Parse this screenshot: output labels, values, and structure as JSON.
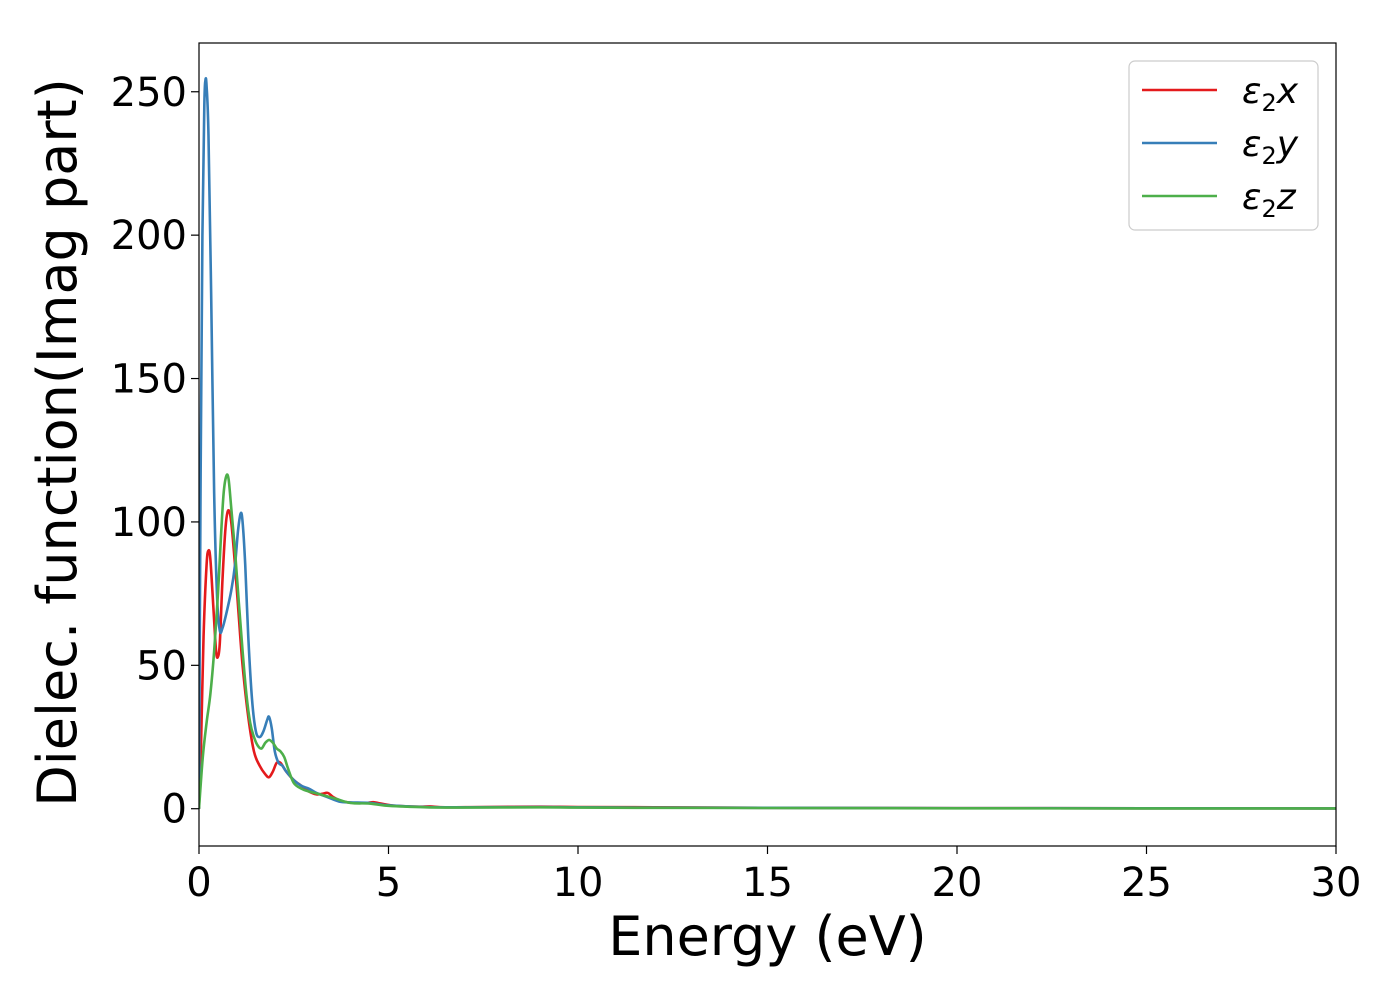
{
  "chart_data": {
    "type": "line",
    "xlabel": "Energy (eV)",
    "ylabel": "Dielec. function(Imag part)",
    "xlim": [
      0,
      30
    ],
    "ylim": [
      -13,
      267
    ],
    "xticks": [
      0,
      5,
      10,
      15,
      20,
      25,
      30
    ],
    "yticks": [
      0,
      50,
      100,
      150,
      200,
      250
    ],
    "grid": false,
    "legend_position": "top-right",
    "series": [
      {
        "name": "ε2x",
        "symbol": "ε",
        "sub": "2",
        "suffix": "x",
        "color": "#e41a1c",
        "points": [
          [
            0,
            0
          ],
          [
            0.05,
            20
          ],
          [
            0.12,
            60
          ],
          [
            0.2,
            85
          ],
          [
            0.25,
            90
          ],
          [
            0.3,
            87
          ],
          [
            0.38,
            70
          ],
          [
            0.45,
            55
          ],
          [
            0.5,
            53
          ],
          [
            0.55,
            58
          ],
          [
            0.62,
            80
          ],
          [
            0.7,
            98
          ],
          [
            0.77,
            104
          ],
          [
            0.85,
            100
          ],
          [
            0.95,
            85
          ],
          [
            1.05,
            67
          ],
          [
            1.15,
            50
          ],
          [
            1.3,
            32
          ],
          [
            1.45,
            20
          ],
          [
            1.6,
            15
          ],
          [
            1.75,
            12
          ],
          [
            1.85,
            11
          ],
          [
            1.95,
            13
          ],
          [
            2.05,
            16
          ],
          [
            2.15,
            16
          ],
          [
            2.3,
            13
          ],
          [
            2.5,
            10
          ],
          [
            2.7,
            8
          ],
          [
            2.9,
            6
          ],
          [
            3.1,
            5
          ],
          [
            3.25,
            5.2
          ],
          [
            3.4,
            5.5
          ],
          [
            3.55,
            4
          ],
          [
            3.8,
            2.5
          ],
          [
            4.1,
            2
          ],
          [
            4.4,
            2
          ],
          [
            4.6,
            2.3
          ],
          [
            4.8,
            1.8
          ],
          [
            5.2,
            1
          ],
          [
            5.8,
            0.7
          ],
          [
            6.1,
            0.8
          ],
          [
            6.5,
            0.5
          ],
          [
            7.5,
            0.6
          ],
          [
            9,
            0.7
          ],
          [
            10,
            0.6
          ],
          [
            12,
            0.5
          ],
          [
            15,
            0.3
          ],
          [
            20,
            0.2
          ],
          [
            25,
            0.15
          ],
          [
            30,
            0.1
          ]
        ]
      },
      {
        "name": "ε2y",
        "symbol": "ε",
        "sub": "2",
        "suffix": "y",
        "color": "#377eb8",
        "points": [
          [
            0,
            0
          ],
          [
            0.04,
            110
          ],
          [
            0.09,
            200
          ],
          [
            0.14,
            245
          ],
          [
            0.17,
            254
          ],
          [
            0.2,
            252
          ],
          [
            0.25,
            235
          ],
          [
            0.32,
            180
          ],
          [
            0.4,
            110
          ],
          [
            0.48,
            73
          ],
          [
            0.55,
            62
          ],
          [
            0.62,
            63
          ],
          [
            0.72,
            68
          ],
          [
            0.85,
            76
          ],
          [
            0.95,
            85
          ],
          [
            1.03,
            97
          ],
          [
            1.1,
            103
          ],
          [
            1.15,
            100
          ],
          [
            1.22,
            85
          ],
          [
            1.3,
            60
          ],
          [
            1.4,
            38
          ],
          [
            1.5,
            27
          ],
          [
            1.6,
            25
          ],
          [
            1.7,
            27
          ],
          [
            1.8,
            31
          ],
          [
            1.85,
            32
          ],
          [
            1.92,
            28
          ],
          [
            2.0,
            20
          ],
          [
            2.1,
            16
          ],
          [
            2.2,
            15
          ],
          [
            2.3,
            13
          ],
          [
            2.5,
            10
          ],
          [
            2.7,
            8
          ],
          [
            2.9,
            7
          ],
          [
            3.1,
            5.5
          ],
          [
            3.4,
            4
          ],
          [
            3.7,
            2.5
          ],
          [
            4.0,
            2.2
          ],
          [
            4.5,
            2
          ],
          [
            5.0,
            1.2
          ],
          [
            6,
            0.6
          ],
          [
            7,
            0.5
          ],
          [
            9,
            0.6
          ],
          [
            10,
            0.5
          ],
          [
            12,
            0.4
          ],
          [
            15,
            0.3
          ],
          [
            20,
            0.2
          ],
          [
            25,
            0.15
          ],
          [
            30,
            0.1
          ]
        ]
      },
      {
        "name": "ε2z",
        "symbol": "ε",
        "sub": "2",
        "suffix": "z",
        "color": "#4daf4a",
        "points": [
          [
            0,
            0
          ],
          [
            0.1,
            18
          ],
          [
            0.2,
            30
          ],
          [
            0.3,
            40
          ],
          [
            0.4,
            55
          ],
          [
            0.5,
            75
          ],
          [
            0.58,
            95
          ],
          [
            0.65,
            110
          ],
          [
            0.72,
            116
          ],
          [
            0.78,
            115
          ],
          [
            0.85,
            105
          ],
          [
            0.95,
            90
          ],
          [
            1.05,
            72
          ],
          [
            1.15,
            55
          ],
          [
            1.25,
            40
          ],
          [
            1.35,
            30
          ],
          [
            1.45,
            25
          ],
          [
            1.55,
            22
          ],
          [
            1.65,
            21
          ],
          [
            1.75,
            23
          ],
          [
            1.85,
            24
          ],
          [
            1.95,
            23
          ],
          [
            2.05,
            21
          ],
          [
            2.15,
            20
          ],
          [
            2.25,
            18
          ],
          [
            2.35,
            14
          ],
          [
            2.5,
            9
          ],
          [
            2.7,
            7
          ],
          [
            2.9,
            6
          ],
          [
            3.2,
            5
          ],
          [
            3.6,
            3.5
          ],
          [
            4.0,
            2
          ],
          [
            4.5,
            1.8
          ],
          [
            5.0,
            1
          ],
          [
            6,
            0.5
          ],
          [
            7,
            0.4
          ],
          [
            9,
            0.5
          ],
          [
            10,
            0.4
          ],
          [
            12,
            0.3
          ],
          [
            15,
            0.25
          ],
          [
            20,
            0.15
          ],
          [
            25,
            0.1
          ],
          [
            30,
            0.1
          ]
        ]
      }
    ]
  }
}
